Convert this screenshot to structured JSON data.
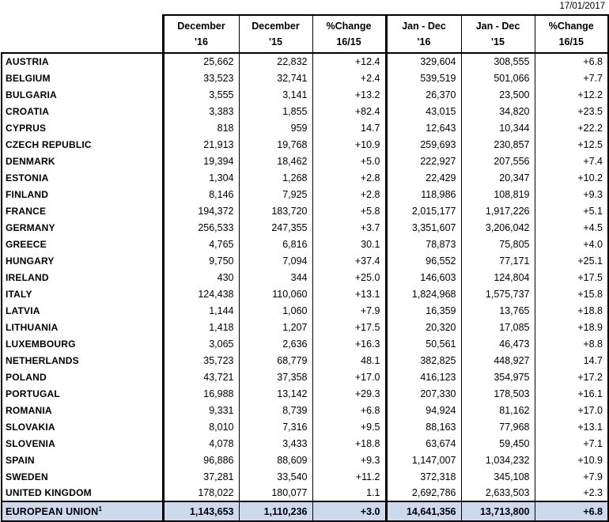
{
  "date": "17/01/2017",
  "colors": {
    "total_row_bg": "#CDD9EC",
    "border": "#000000",
    "text": "#000000",
    "background": "#FFFFFF"
  },
  "table": {
    "headers": [
      {
        "line1": "December",
        "line2": "'16"
      },
      {
        "line1": "December",
        "line2": "'15"
      },
      {
        "line1": "%Change",
        "line2": "16/15"
      },
      {
        "line1": "Jan - Dec",
        "line2": "'16"
      },
      {
        "line1": "Jan - Dec",
        "line2": "'15"
      },
      {
        "line1": "%Change",
        "line2": "16/15"
      }
    ],
    "rows": [
      {
        "country": "AUSTRIA",
        "values": [
          "25,662",
          "22,832",
          "+12.4",
          "329,604",
          "308,555",
          "+6.8"
        ]
      },
      {
        "country": "BELGIUM",
        "values": [
          "33,523",
          "32,741",
          "+2.4",
          "539,519",
          "501,066",
          "+7.7"
        ]
      },
      {
        "country": "BULGARIA",
        "values": [
          "3,555",
          "3,141",
          "+13.2",
          "26,370",
          "23,500",
          "+12.2"
        ]
      },
      {
        "country": "CROATIA",
        "values": [
          "3,383",
          "1,855",
          "+82.4",
          "43,015",
          "34,820",
          "+23.5"
        ]
      },
      {
        "country": "CYPRUS",
        "values": [
          "818",
          "959",
          "14.7",
          "12,643",
          "10,344",
          "+22.2"
        ]
      },
      {
        "country": "CZECH REPUBLIC",
        "values": [
          "21,913",
          "19,768",
          "+10.9",
          "259,693",
          "230,857",
          "+12.5"
        ]
      },
      {
        "country": "DENMARK",
        "values": [
          "19,394",
          "18,462",
          "+5.0",
          "222,927",
          "207,556",
          "+7.4"
        ]
      },
      {
        "country": "ESTONIA",
        "values": [
          "1,304",
          "1,268",
          "+2.8",
          "22,429",
          "20,347",
          "+10.2"
        ]
      },
      {
        "country": "FINLAND",
        "values": [
          "8,146",
          "7,925",
          "+2.8",
          "118,986",
          "108,819",
          "+9.3"
        ]
      },
      {
        "country": "FRANCE",
        "values": [
          "194,372",
          "183,720",
          "+5.8",
          "2,015,177",
          "1,917,226",
          "+5.1"
        ]
      },
      {
        "country": "GERMANY",
        "values": [
          "256,533",
          "247,355",
          "+3.7",
          "3,351,607",
          "3,206,042",
          "+4.5"
        ]
      },
      {
        "country": "GREECE",
        "values": [
          "4,765",
          "6,816",
          "30.1",
          "78,873",
          "75,805",
          "+4.0"
        ]
      },
      {
        "country": "HUNGARY",
        "values": [
          "9,750",
          "7,094",
          "+37.4",
          "96,552",
          "77,171",
          "+25.1"
        ]
      },
      {
        "country": "IRELAND",
        "values": [
          "430",
          "344",
          "+25.0",
          "146,603",
          "124,804",
          "+17.5"
        ]
      },
      {
        "country": "ITALY",
        "values": [
          "124,438",
          "110,060",
          "+13.1",
          "1,824,968",
          "1,575,737",
          "+15.8"
        ]
      },
      {
        "country": "LATVIA",
        "values": [
          "1,144",
          "1,060",
          "+7.9",
          "16,359",
          "13,765",
          "+18.8"
        ]
      },
      {
        "country": "LITHUANIA",
        "values": [
          "1,418",
          "1,207",
          "+17.5",
          "20,320",
          "17,085",
          "+18.9"
        ]
      },
      {
        "country": "LUXEMBOURG",
        "values": [
          "3,065",
          "2,636",
          "+16.3",
          "50,561",
          "46,473",
          "+8.8"
        ]
      },
      {
        "country": "NETHERLANDS",
        "values": [
          "35,723",
          "68,779",
          "48.1",
          "382,825",
          "448,927",
          "14.7"
        ]
      },
      {
        "country": "POLAND",
        "values": [
          "43,721",
          "37,358",
          "+17.0",
          "416,123",
          "354,975",
          "+17.2"
        ]
      },
      {
        "country": "PORTUGAL",
        "values": [
          "16,988",
          "13,142",
          "+29.3",
          "207,330",
          "178,503",
          "+16.1"
        ]
      },
      {
        "country": "ROMANIA",
        "values": [
          "9,331",
          "8,739",
          "+6.8",
          "94,924",
          "81,162",
          "+17.0"
        ]
      },
      {
        "country": "SLOVAKIA",
        "values": [
          "8,010",
          "7,316",
          "+9.5",
          "88,163",
          "77,968",
          "+13.1"
        ]
      },
      {
        "country": "SLOVENIA",
        "values": [
          "4,078",
          "3,433",
          "+18.8",
          "63,674",
          "59,450",
          "+7.1"
        ]
      },
      {
        "country": "SPAIN",
        "values": [
          "96,886",
          "88,609",
          "+9.3",
          "1,147,007",
          "1,034,232",
          "+10.9"
        ]
      },
      {
        "country": "SWEDEN",
        "values": [
          "37,281",
          "33,540",
          "+11.2",
          "372,318",
          "345,108",
          "+7.9"
        ]
      },
      {
        "country": "UNITED KINGDOM",
        "values": [
          "178,022",
          "180,077",
          "1.1",
          "2,692,786",
          "2,633,503",
          "+2.3"
        ]
      }
    ],
    "total": {
      "label": "EUROPEAN UNION",
      "superscript": "1",
      "values": [
        "1,143,653",
        "1,110,236",
        "+3.0",
        "14,641,356",
        "13,713,800",
        "+6.8"
      ]
    }
  }
}
